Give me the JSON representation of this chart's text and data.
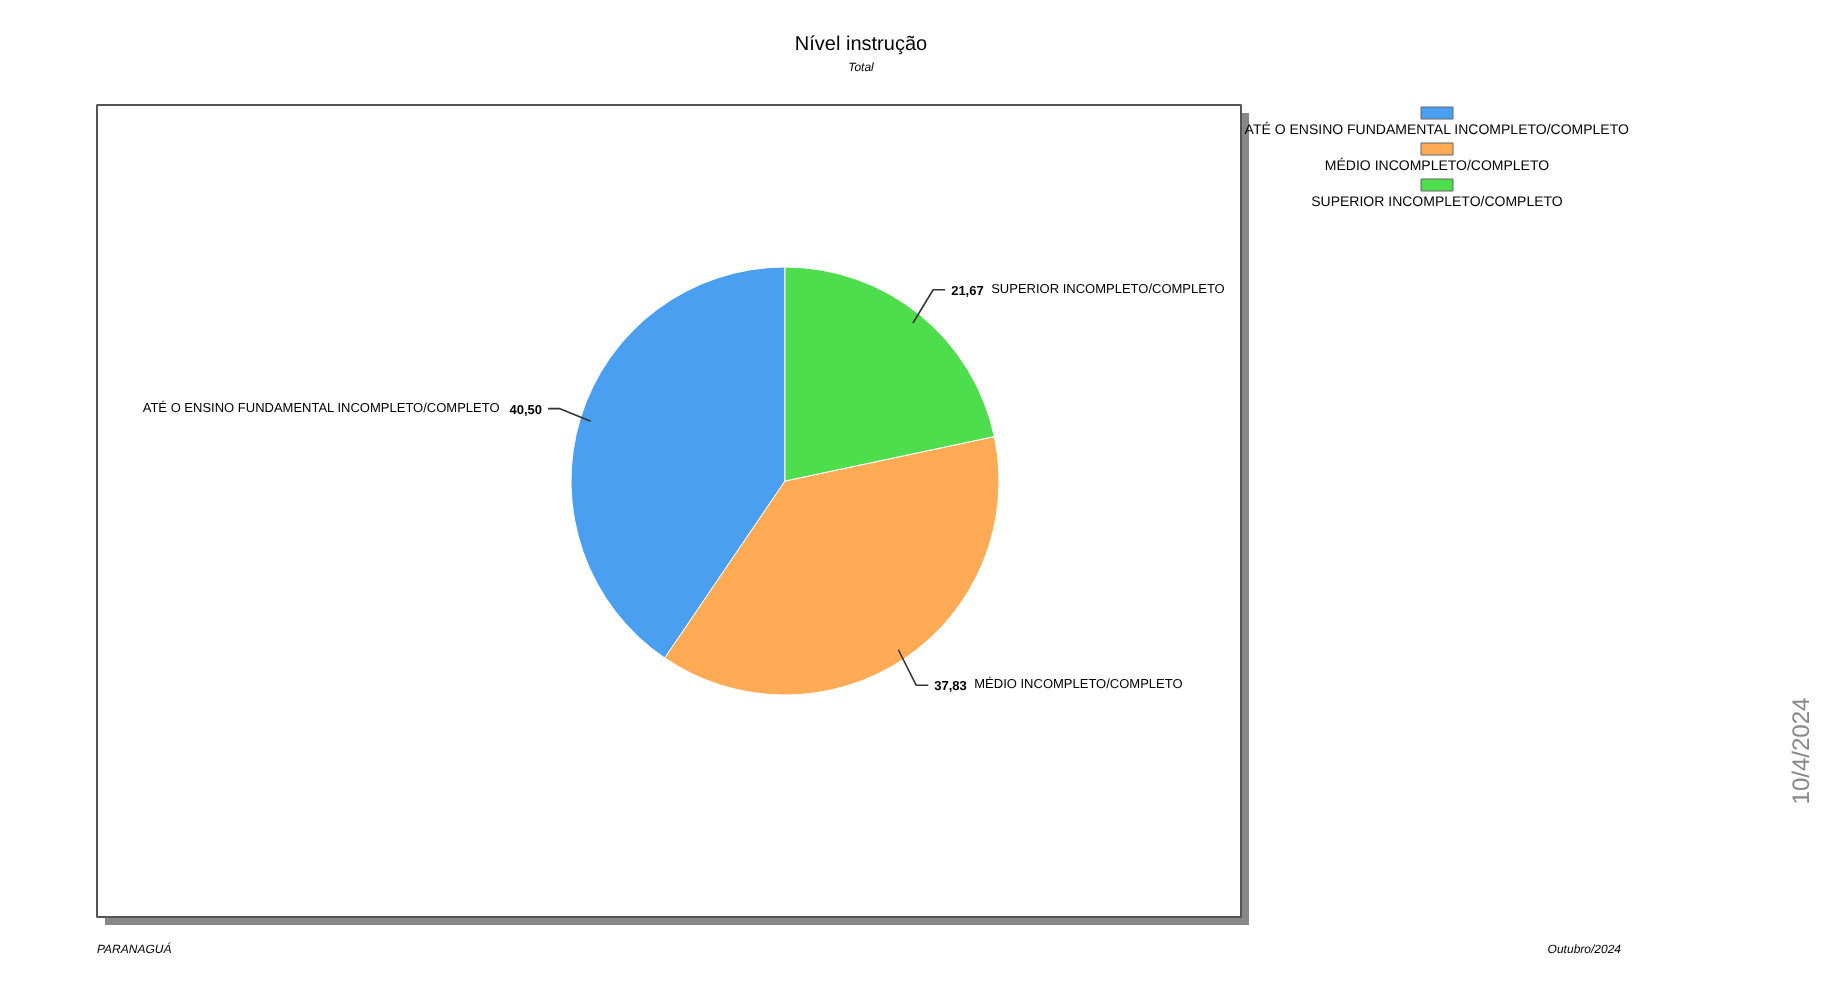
{
  "chart_data": {
    "type": "pie",
    "title": "Nível instrução",
    "subtitle": "Total",
    "categories": [
      "ATÉ O ENSINO FUNDAMENTAL INCOMPLETO/COMPLETO",
      "MÉDIO INCOMPLETO/COMPLETO",
      "SUPERIOR INCOMPLETO/COMPLETO"
    ],
    "values": [
      40.5,
      37.83,
      21.67
    ],
    "value_labels": [
      "40,50",
      "37,83",
      "21,67"
    ],
    "colors": [
      "#4a9ff0",
      "#ffaa55",
      "#4ddd4d"
    ],
    "legend": "top right",
    "annotations": [
      "PARANAGUÁ",
      "Outubro/2024",
      "10/4/2024"
    ]
  }
}
